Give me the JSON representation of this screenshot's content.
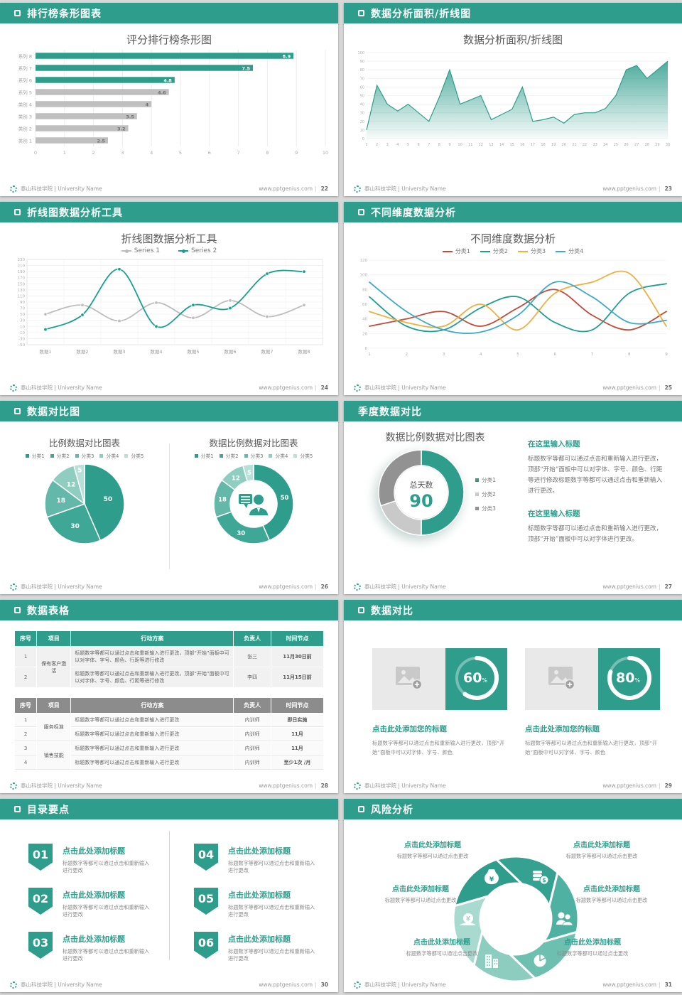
{
  "shared": {
    "org": "泰山科技学院 | University Name",
    "site": "www.pptgenius.com",
    "accent": "#2E9D8C",
    "header_icon": "square-outline-icon",
    "footer_logo": "school-emblem-icon"
  },
  "slides": {
    "s22": {
      "header": "排行榜条形图表",
      "page": "22"
    },
    "s23": {
      "header": "数据分析面积/折线图",
      "page": "23"
    },
    "s24": {
      "header": "折线图数据分析工具",
      "page": "24"
    },
    "s25": {
      "header": "不同维度数据分析",
      "page": "25"
    },
    "s26": {
      "header": "数据对比图",
      "page": "26"
    },
    "s27": {
      "header": "季度数据对比",
      "page": "27",
      "blocks": [
        {
          "title": "在这里输入标题",
          "body": "标题数字等都可以通过点击和重新输入进行更改，顶部“开始”面板中可以对字体、字号、颜色、行距等进行修改标题数字等都可以通过点击和重新输入进行更改。"
        },
        {
          "title": "在这里输入标题",
          "body": "标题数字等都可以通过点击和重新输入进行更改，顶部“开始”面板中可以对字体进行更改。"
        }
      ]
    },
    "s28": {
      "header": "数据表格",
      "page": "28",
      "table1": {
        "headers": [
          "序号",
          "项目",
          "行动方案",
          "负责人",
          "时间节点"
        ],
        "rows": [
          {
            "no": "1",
            "item": "保有客户激活",
            "item_span": 2,
            "plan": "标题数字等都可以通过点击和重新输入进行更改，顶部“开始”面板中可以对字体、字号、颜色、行距等进行修改",
            "owner": "张三",
            "time": "11月30日前"
          },
          {
            "no": "2",
            "plan": "标题数字等都可以通过点击和重新输入进行更改，顶部“开始”面板中可以对字体、字号、颜色、行距等进行修改",
            "owner": "李四",
            "time": "11月15日前"
          }
        ]
      },
      "table2": {
        "headers": [
          "序号",
          "项目",
          "行动方案",
          "负责人",
          "时间节点"
        ],
        "rows": [
          {
            "no": "1",
            "item": "服务标准",
            "item_span": 2,
            "plan": "标题数字等都可以通过点击和重新输入进行更改",
            "owner": "内训师",
            "time": "即日实施"
          },
          {
            "no": "2",
            "plan": "标题数字等都可以通过点击和重新输入进行更改",
            "owner": "内训师",
            "time": "11月"
          },
          {
            "no": "3",
            "item": "销售技能",
            "item_span": 2,
            "plan": "标题数字等都可以通过点击和重新输入进行更改",
            "owner": "内训师",
            "time": "11月"
          },
          {
            "no": "4",
            "plan": "标题数字等都可以通过点击和重新输入进行更改",
            "owner": "内训师",
            "time": "至少1次 /月"
          }
        ]
      }
    },
    "s29": {
      "header": "数据对比",
      "page": "29",
      "cards": [
        {
          "percent": 60,
          "suffix": "%",
          "title": "点击此处添加您的标题",
          "body": "标题数字等都可以通过点击和重新输入进行更改，顶部“开始”面板中可以对字体、字号、颜色"
        },
        {
          "percent": 80,
          "suffix": "%",
          "title": "点击此处添加您的标题",
          "body": "标题数字等都可以通过点击和重新输入进行更改，顶部“开始”面板中可以对字体、字号、颜色"
        }
      ]
    },
    "s30": {
      "header": "目录要点",
      "page": "30",
      "items": [
        {
          "num": "01",
          "title": "点击此处添加标题",
          "desc": "标题数字等都可以通过点击和重新输入进行更改"
        },
        {
          "num": "02",
          "title": "点击此处添加标题",
          "desc": "标题数字等都可以通过点击和重新输入进行更改"
        },
        {
          "num": "03",
          "title": "点击此处添加标题",
          "desc": "标题数字等都可以通过点击和重新输入进行更改"
        },
        {
          "num": "04",
          "title": "点击此处添加标题",
          "desc": "标题数字等都可以通过点击和重新输入进行更改"
        },
        {
          "num": "05",
          "title": "点击此处添加标题",
          "desc": "标题数字等都可以通过点击和重新输入进行更改"
        },
        {
          "num": "06",
          "title": "点击此处添加标题",
          "desc": "标题数字等都可以通过点击和重新输入进行更改"
        }
      ]
    },
    "s31": {
      "header": "风险分析",
      "page": "31",
      "labels": [
        {
          "title": "点击此处添加标题",
          "desc": "标题数字等都可以通过点击更改"
        },
        {
          "title": "点击此处添加标题",
          "desc": "标题数字等都可以通过点击更改"
        },
        {
          "title": "点击此处添加标题",
          "desc": "标题数字等都可以通过点击更改"
        },
        {
          "title": "点击此处添加标题",
          "desc": "标题数字等都可以通过点击更改"
        },
        {
          "title": "点击此处添加标题",
          "desc": "标题数字等都可以通过点击更改"
        },
        {
          "title": "点击此处添加标题",
          "desc": "标题数字等都可以通过点击更改"
        }
      ],
      "icons": [
        "money-bag-icon",
        "coins-icon",
        "people-icon",
        "pie-chart-icon",
        "building-icon",
        "snail-money-icon"
      ],
      "petal_colors": [
        "#2E9D8C",
        "#35A291",
        "#4FB1A1",
        "#6DBFB0",
        "#8CCDC0",
        "#A9DACF"
      ]
    }
  },
  "chart_data": [
    {
      "id": "bar22",
      "type": "bar",
      "orientation": "horizontal",
      "title": "评分排行榜条形图",
      "categories": [
        "系列 8",
        "系列 7",
        "系列 6",
        "系列 5",
        "类别 4",
        "类别 3",
        "类别 2",
        "类别 1"
      ],
      "values": [
        8.9,
        7.5,
        4.8,
        4.6,
        4,
        3.5,
        3.2,
        2.5
      ],
      "bar_colors": [
        "#2E9D8C",
        "#2E9D8C",
        "#2E9D8C",
        "#BFBFBF",
        "#BFBFBF",
        "#BFBFBF",
        "#BFBFBF",
        "#BFBFBF"
      ],
      "xlim": [
        0,
        10
      ],
      "xticks": [
        0,
        1,
        2,
        3,
        4,
        5,
        6,
        7,
        8,
        9,
        10
      ],
      "grid": true
    },
    {
      "id": "area23",
      "type": "area",
      "title": "数据分析面积/折线图",
      "x": [
        1,
        2,
        3,
        4,
        5,
        6,
        7,
        8,
        9,
        10,
        11,
        12,
        13,
        14,
        15,
        16,
        17,
        18,
        19,
        20,
        21,
        22,
        23,
        24,
        25,
        26,
        27,
        28,
        29,
        30
      ],
      "values": [
        10,
        62,
        40,
        32,
        40,
        30,
        20,
        48,
        80,
        40,
        45,
        50,
        22,
        28,
        34,
        60,
        20,
        22,
        25,
        18,
        28,
        30,
        30,
        35,
        50,
        80,
        85,
        70,
        80,
        90
      ],
      "ylim": [
        0,
        100
      ],
      "ystep": 10,
      "color": "#2E9D8C",
      "grid": true
    },
    {
      "id": "line24",
      "type": "line",
      "title": "折线图数据分析工具",
      "legend": "top",
      "smooth": true,
      "markers": true,
      "categories": [
        "数据1",
        "数据2",
        "数据3",
        "数据4",
        "数据5",
        "数据6",
        "数据7",
        "数据8"
      ],
      "series": [
        {
          "name": "Series 1",
          "color": "#BDBDBD",
          "values": [
            50,
            80,
            28,
            88,
            38,
            95,
            42,
            80
          ]
        },
        {
          "name": "Series 2",
          "color": "#17A08E",
          "values": [
            0,
            48,
            198,
            10,
            80,
            70,
            183,
            190
          ]
        }
      ],
      "ylim": [
        -50,
        230
      ],
      "ystep": 20,
      "grid": true,
      "border": true
    },
    {
      "id": "line25",
      "type": "line",
      "title": "不同维度数据分析",
      "legend": "top",
      "smooth": true,
      "markers": false,
      "x": [
        1,
        2,
        3,
        4,
        5,
        6,
        7,
        8,
        9
      ],
      "series": [
        {
          "name": "分类1",
          "color": "#BE4B3B",
          "values": [
            30,
            40,
            50,
            30,
            55,
            80,
            45,
            25,
            50
          ]
        },
        {
          "name": "分类2",
          "color": "#1E9E8E",
          "values": [
            70,
            30,
            25,
            55,
            70,
            35,
            25,
            75,
            88
          ]
        },
        {
          "name": "分类3",
          "color": "#EFAF3C",
          "values": [
            50,
            35,
            30,
            60,
            25,
            75,
            90,
            102,
            30
          ]
        },
        {
          "name": "分类4",
          "color": "#3FA9C9",
          "values": [
            90,
            50,
            25,
            22,
            45,
            90,
            70,
            35,
            38
          ]
        }
      ],
      "ylim": [
        0,
        120
      ],
      "ystep": 20,
      "grid": true,
      "border": false
    },
    {
      "id": "pie26",
      "type": "pie",
      "title": "比例数据对比图表",
      "labels": [
        "分类1",
        "分类2",
        "分类3",
        "分类4",
        "分类5"
      ],
      "values": [
        50,
        30,
        18,
        12,
        5
      ],
      "colors": [
        "#2E9D8C",
        "#3EA795",
        "#63B8A9",
        "#8FCDC1",
        "#B8E0D8"
      ]
    },
    {
      "id": "donut26",
      "type": "pie",
      "subtype": "donut",
      "title": "数据比例数据对比图表",
      "labels": [
        "分类1",
        "分类2",
        "分类3",
        "分类4",
        "分类5"
      ],
      "values": [
        50,
        30,
        18,
        12,
        5
      ],
      "colors": [
        "#2E9D8C",
        "#3EA795",
        "#63B8A9",
        "#8FCDC1",
        "#B8E0D8"
      ],
      "center_icon": "consultant-icon"
    },
    {
      "id": "donut27",
      "type": "pie",
      "subtype": "donut",
      "title": "数据比例数据对比图表",
      "labels": [
        "分类1",
        "分类2",
        "分类3"
      ],
      "values": [
        50,
        20,
        30
      ],
      "colors": [
        "#2E9D8C",
        "#C9C9C9",
        "#929292"
      ],
      "center_label": "总天数",
      "center_value": "90"
    },
    {
      "id": "ring60",
      "type": "progress-ring",
      "value": 60,
      "suffix": "%"
    },
    {
      "id": "ring80",
      "type": "progress-ring",
      "value": 80,
      "suffix": "%"
    }
  ]
}
